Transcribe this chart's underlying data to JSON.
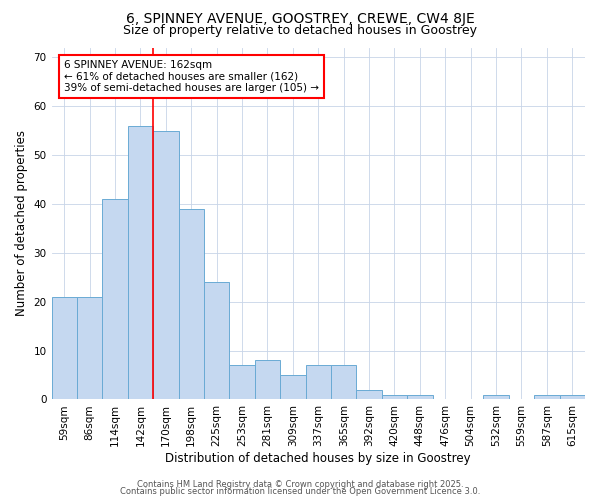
{
  "title": "6, SPINNEY AVENUE, GOOSTREY, CREWE, CW4 8JE",
  "subtitle": "Size of property relative to detached houses in Goostrey",
  "xlabel": "Distribution of detached houses by size in Goostrey",
  "ylabel": "Number of detached properties",
  "categories": [
    "59sqm",
    "86sqm",
    "114sqm",
    "142sqm",
    "170sqm",
    "198sqm",
    "225sqm",
    "253sqm",
    "281sqm",
    "309sqm",
    "337sqm",
    "365sqm",
    "392sqm",
    "420sqm",
    "448sqm",
    "476sqm",
    "504sqm",
    "532sqm",
    "559sqm",
    "587sqm",
    "615sqm"
  ],
  "values": [
    21,
    21,
    41,
    56,
    55,
    39,
    24,
    7,
    8,
    5,
    7,
    7,
    2,
    1,
    1,
    0,
    0,
    1,
    0,
    1,
    1
  ],
  "bar_color": "#c5d8f0",
  "bar_edge_color": "#6aaad4",
  "background_color": "#ffffff",
  "grid_color": "#c8d4e8",
  "red_line_x": 4.0,
  "annotation_text": "6 SPINNEY AVENUE: 162sqm\n← 61% of detached houses are smaller (162)\n39% of semi-detached houses are larger (105) →",
  "annotation_box_color": "white",
  "annotation_box_edge_color": "red",
  "ylim": [
    0,
    72
  ],
  "yticks": [
    0,
    10,
    20,
    30,
    40,
    50,
    60,
    70
  ],
  "footer1": "Contains HM Land Registry data © Crown copyright and database right 2025.",
  "footer2": "Contains public sector information licensed under the Open Government Licence 3.0.",
  "title_fontsize": 10,
  "subtitle_fontsize": 9,
  "tick_fontsize": 7.5,
  "label_fontsize": 8.5,
  "annotation_fontsize": 7.5,
  "footer_fontsize": 6
}
